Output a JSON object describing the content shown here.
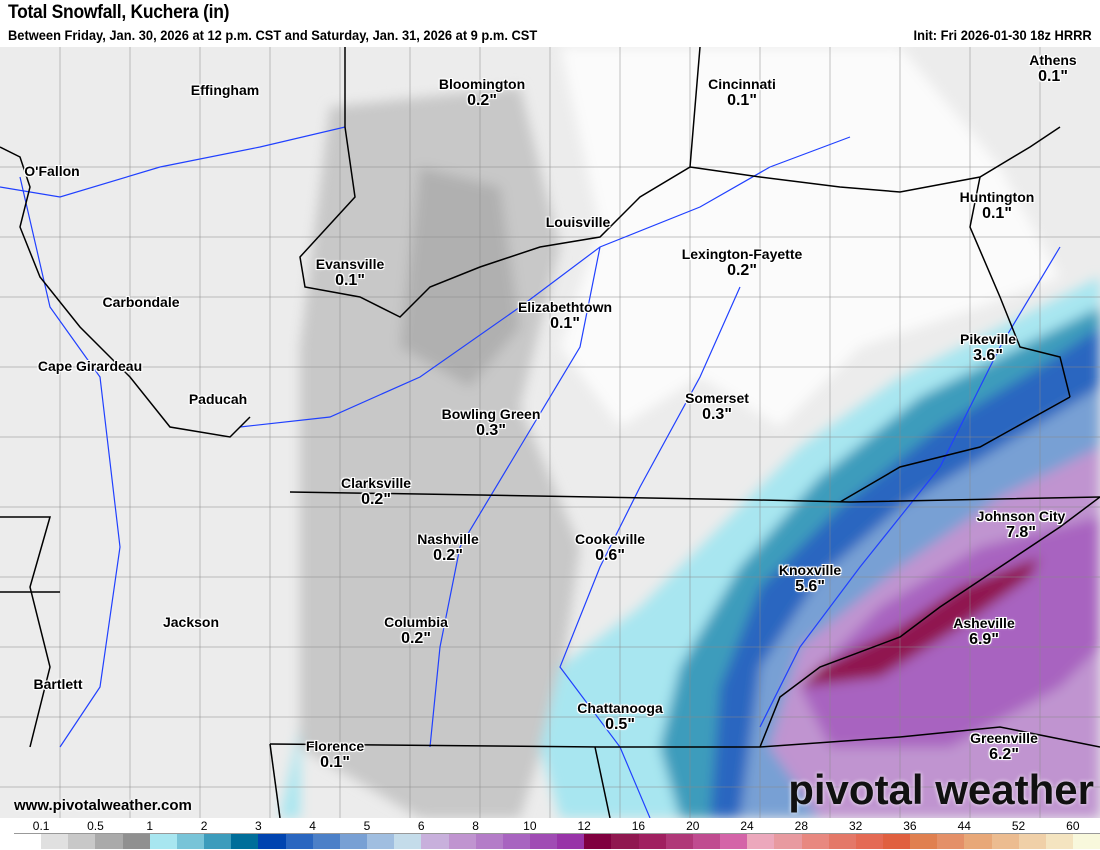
{
  "header": {
    "title": "Total Snowfall, Kuchera (in)",
    "subtitle": "Between Friday, Jan. 30, 2026 at 12 p.m. CST and Saturday, Jan. 31, 2026 at 9 p.m. CST",
    "init": "Init: Fri 2026-01-30 18z HRRR"
  },
  "cities": [
    {
      "name": "Athens",
      "value": "0.1\""
    },
    {
      "name": "Cincinnati",
      "value": "0.1\""
    },
    {
      "name": "Bloomington",
      "value": "0.2\""
    },
    {
      "name": "Effingham",
      "value": ""
    },
    {
      "name": "O'Fallon",
      "value": ""
    },
    {
      "name": "Huntington",
      "value": "0.1\""
    },
    {
      "name": "Louisville",
      "value": ""
    },
    {
      "name": "Lexington-Fayette",
      "value": "0.2\""
    },
    {
      "name": "Evansville",
      "value": "0.1\""
    },
    {
      "name": "Carbondale",
      "value": ""
    },
    {
      "name": "Elizabethtown",
      "value": "0.1\""
    },
    {
      "name": "Pikeville",
      "value": "3.6\""
    },
    {
      "name": "Cape Girardeau",
      "value": ""
    },
    {
      "name": "Paducah",
      "value": ""
    },
    {
      "name": "Bowling Green",
      "value": "0.3\""
    },
    {
      "name": "Somerset",
      "value": "0.3\""
    },
    {
      "name": "Clarksville",
      "value": "0.2\""
    },
    {
      "name": "Johnson City",
      "value": "7.8\""
    },
    {
      "name": "Nashville",
      "value": "0.2\""
    },
    {
      "name": "Cookeville",
      "value": "0.6\""
    },
    {
      "name": "Knoxville",
      "value": "5.6\""
    },
    {
      "name": "Jackson",
      "value": ""
    },
    {
      "name": "Columbia",
      "value": "0.2\""
    },
    {
      "name": "Asheville",
      "value": "6.9\""
    },
    {
      "name": "Bartlett",
      "value": ""
    },
    {
      "name": "Chattanooga",
      "value": "0.5\""
    },
    {
      "name": "Florence",
      "value": "0.1\""
    },
    {
      "name": "Greenville",
      "value": "6.2\""
    }
  ],
  "footer": {
    "website": "www.pivotalweather.com",
    "logo": "pivotal weather"
  },
  "colorbar": {
    "labels": [
      "0.1",
      "0.5",
      "1",
      "2",
      "3",
      "4",
      "5",
      "6",
      "8",
      "10",
      "12",
      "16",
      "20",
      "24",
      "28",
      "32",
      "36",
      "44",
      "52",
      "60"
    ],
    "colors": [
      "#ffffff",
      "#e0e0e0",
      "#c8c8c8",
      "#aaaaaa",
      "#909090",
      "#a8e6f0",
      "#78c4d8",
      "#3c9cbc",
      "#006e9a",
      "#0044b0",
      "#2a66c0",
      "#4c80c8",
      "#78a0d4",
      "#a0bee0",
      "#c4dcea",
      "#c8b0dc",
      "#c094d0",
      "#b47cc8",
      "#a864c0",
      "#a04cb4",
      "#9834a8",
      "#800040",
      "#901850",
      "#a02060",
      "#b03878",
      "#c04c90",
      "#d464a8",
      "#eca8bc",
      "#e89aa0",
      "#e88880",
      "#e47868",
      "#e46a54",
      "#e06040",
      "#e08050",
      "#e49068",
      "#e8a878",
      "#ecbc90",
      "#f0d0a8",
      "#f4e4c0",
      "#f8f8dc"
    ]
  }
}
